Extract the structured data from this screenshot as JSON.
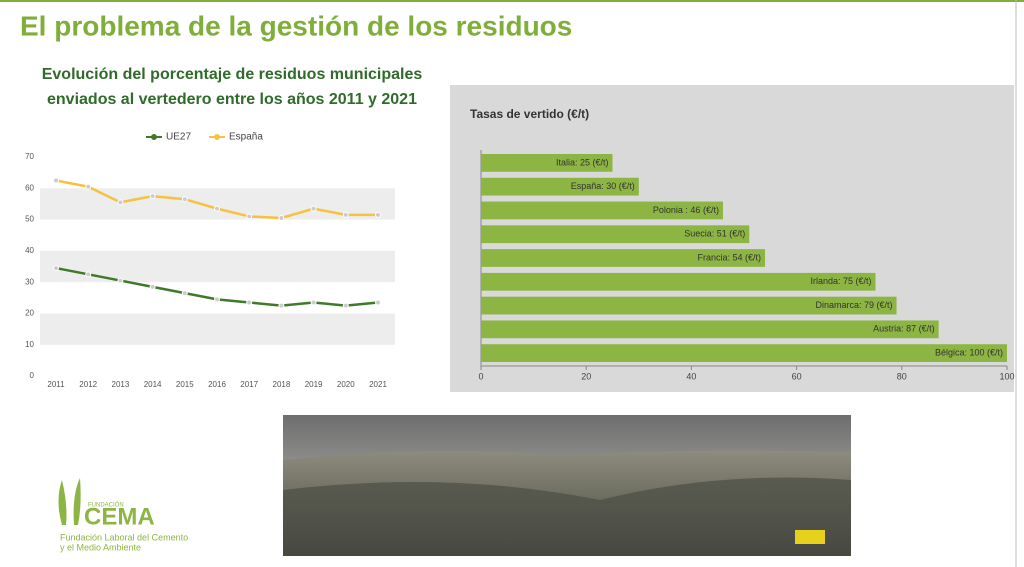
{
  "title": "El problema de la gestión de los residuos",
  "subtitle_lines": [
    "Evolución del porcentaje de residuos municipales",
    "enviados al vertedero entre los años 2011 y 2021"
  ],
  "logo": {
    "small": "FUNDACIÓN",
    "name": "CEMA",
    "line1": "Fundación Laboral del Cemento",
    "line2": "y el Medio Ambiente"
  },
  "chart_data": [
    {
      "type": "line",
      "categories": [
        "2011",
        "2012",
        "2013",
        "2014",
        "2015",
        "2016",
        "2017",
        "2018",
        "2019",
        "2020",
        "2021"
      ],
      "series": [
        {
          "name": "UE27",
          "color": "#3f7a2a",
          "values": [
            34.5,
            32.5,
            30.5,
            28.5,
            26.5,
            24.5,
            23.5,
            22.5,
            23.5,
            22.5,
            23.5
          ]
        },
        {
          "name": "España",
          "color": "#f5c242",
          "values": [
            62.5,
            60.5,
            55.5,
            57.5,
            56.5,
            53.5,
            51,
            50.5,
            53.5,
            51.5,
            51.5
          ]
        }
      ],
      "ylim": [
        0,
        70
      ],
      "yticks": [
        0,
        10,
        20,
        30,
        40,
        50,
        60,
        70
      ],
      "legend": "top"
    },
    {
      "type": "hbar",
      "title": "Tasas de vertido (€/t)",
      "color": "#8db543",
      "values": [
        25,
        30,
        46,
        51,
        54,
        75,
        79,
        87,
        100
      ],
      "value_labels": [
        "Italia: 25 (€/t)",
        "España: 30 (€/t)",
        "Polonia : 46 (€/t)",
        "Suecia: 51 (€/t)",
        "Francia: 54 (€/t)",
        "Irlanda: 75 (€/t)",
        "Dinamarca: 79 (€/t)",
        "Austria: 87 (€/t)",
        "Bélgica: 100 (€/t)"
      ],
      "xlim": [
        0,
        100
      ],
      "xticks": [
        0,
        20,
        40,
        60,
        80,
        100
      ]
    }
  ]
}
